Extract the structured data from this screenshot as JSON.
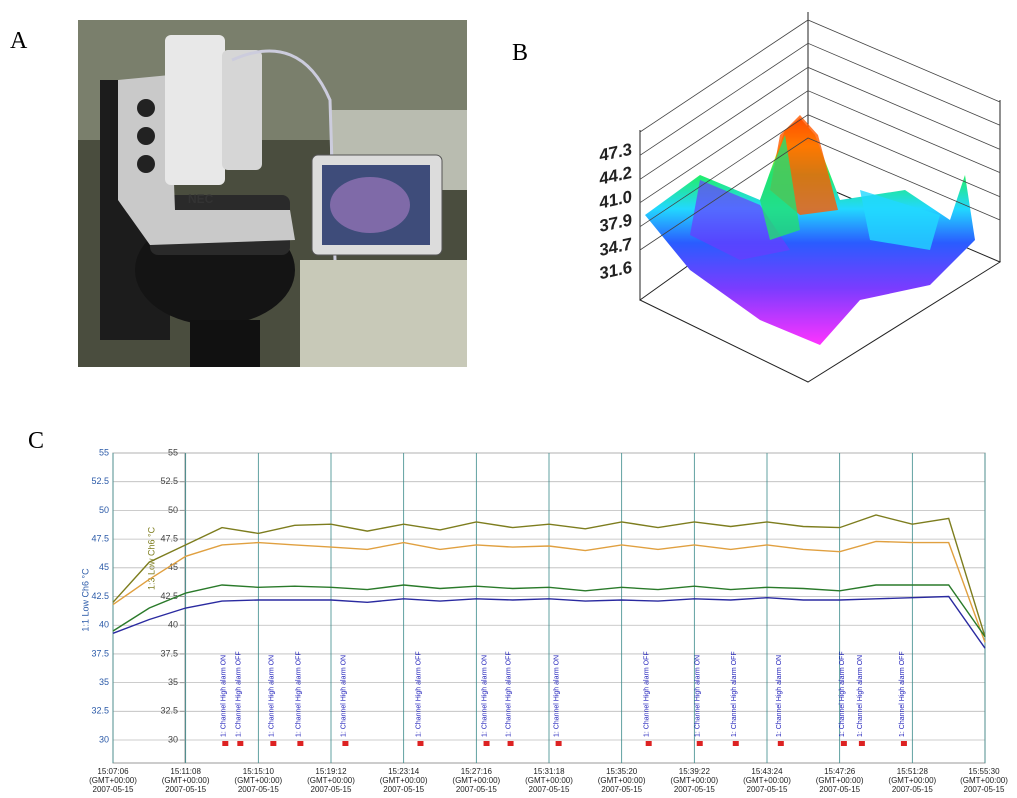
{
  "figure_labels": [
    "A",
    "B",
    "C"
  ],
  "chart_data": [
    {
      "type": "surface3d",
      "zlim": [
        31.6,
        47.3
      ],
      "zticks": [
        47.3,
        44.2,
        {
          "value": 41,
          "label": "41.0"
        },
        37.9,
        34.7,
        31.6
      ]
    },
    {
      "type": "line",
      "y_label": "1:1 Low Ch6 °C",
      "y2_label": "1:3 Low Ch6 °C",
      "x": [
        "15:07:06",
        "15:09:07",
        "15:11:08",
        "15:13:09",
        "15:15:10",
        "15:17:11",
        "15:19:12",
        "15:21:13",
        "15:23:14",
        "15:25:15",
        "15:27:16",
        "15:29:17",
        "15:31:18",
        "15:33:19",
        "15:35:20",
        "15:37:21",
        "15:39:22",
        "15:41:23",
        "15:43:24",
        "15:45:25",
        "15:47:26",
        "15:49:27",
        "15:51:28",
        "15:53:29",
        "15:55:30"
      ],
      "xlim": [
        "15:07:06",
        "15:55:30"
      ],
      "xticks": [
        {
          "value": "15:07:06",
          "label": "15:07:06 (GMT+00:00) 2007-05-15"
        },
        {
          "value": "15:11:08",
          "label": "15:11:08 (GMT+00:00) 2007-05-15"
        },
        {
          "value": "15:15:10",
          "label": "15:15:10 (GMT+00:00) 2007-05-15"
        },
        {
          "value": "15:19:12",
          "label": "15:19:12 (GMT+00:00) 2007-05-15"
        },
        {
          "value": "15:23:14",
          "label": "15:23:14 (GMT+00:00) 2007-05-15"
        },
        {
          "value": "15:27:16",
          "label": "15:27:16 (GMT+00:00) 2007-05-15"
        },
        {
          "value": "15:31:18",
          "label": "15:31:18 (GMT+00:00) 2007-05-15"
        },
        {
          "value": "15:35:20",
          "label": "15:35:20 (GMT+00:00) 2007-05-15"
        },
        {
          "value": "15:39:22",
          "label": "15:39:22 (GMT+00:00) 2007-05-15"
        },
        {
          "value": "15:43:24",
          "label": "15:43:24 (GMT+00:00) 2007-05-15"
        },
        {
          "value": "15:47:26",
          "label": "15:47:26 (GMT+00:00) 2007-05-15"
        },
        {
          "value": "15:51:28",
          "label": "15:51:28 (GMT+00:00) 2007-05-15"
        },
        {
          "value": "15:55:30",
          "label": "15:55:30 (GMT+00:00) 2007-05-15"
        }
      ],
      "ylim": [
        28,
        55
      ],
      "yticks": [
        55,
        52.5,
        50,
        47.5,
        45,
        42.5,
        40,
        37.5,
        35,
        32.5,
        30
      ],
      "y2lim": [
        28,
        55
      ],
      "y2ticks": [
        55,
        52.5,
        50,
        47.5,
        45,
        42.5,
        40,
        37.5,
        35,
        32.5,
        30
      ],
      "grid": true,
      "series": [
        {
          "color": "#7d7d1e",
          "values": [
            42.0,
            45.5,
            47.0,
            48.5,
            48.0,
            48.7,
            48.8,
            48.2,
            48.8,
            48.3,
            49.0,
            48.5,
            48.8,
            48.4,
            49.0,
            48.5,
            49.0,
            48.6,
            49.0,
            48.6,
            48.5,
            49.6,
            48.8,
            49.3,
            39.0
          ]
        },
        {
          "color": "#e0a040",
          "values": [
            41.8,
            44.0,
            46.0,
            47.0,
            47.2,
            47.0,
            46.8,
            46.6,
            47.2,
            46.6,
            47.0,
            46.8,
            46.9,
            46.5,
            47.0,
            46.6,
            47.0,
            46.6,
            47.0,
            46.6,
            46.4,
            47.3,
            47.2,
            47.2,
            38.5
          ]
        },
        {
          "color": "#2a7a2a",
          "values": [
            39.5,
            41.5,
            42.8,
            43.5,
            43.3,
            43.4,
            43.3,
            43.1,
            43.5,
            43.2,
            43.4,
            43.2,
            43.3,
            43.0,
            43.3,
            43.1,
            43.4,
            43.1,
            43.3,
            43.2,
            43.0,
            43.5,
            43.5,
            43.5,
            39.0
          ]
        },
        {
          "color": "#2a2aa0",
          "values": [
            39.3,
            40.5,
            41.5,
            42.1,
            42.2,
            42.2,
            42.2,
            42.0,
            42.3,
            42.1,
            42.3,
            42.2,
            42.3,
            42.1,
            42.2,
            42.1,
            42.3,
            42.2,
            42.4,
            42.2,
            42.2,
            42.3,
            42.4,
            42.5,
            38.0
          ]
        }
      ],
      "annotations": [
        {
          "x": "15:13:20",
          "text": "1: Channel High alarm ON"
        },
        {
          "x": "15:14:10",
          "text": "1: Channel High alarm OFF"
        },
        {
          "x": "15:16:00",
          "text": "1: Channel High alarm ON"
        },
        {
          "x": "15:17:30",
          "text": "1: Channel High alarm OFF"
        },
        {
          "x": "15:20:00",
          "text": "1: Channel High alarm ON"
        },
        {
          "x": "15:24:10",
          "text": "1: Channel High alarm OFF"
        },
        {
          "x": "15:27:50",
          "text": "1: Channel High alarm ON"
        },
        {
          "x": "15:29:10",
          "text": "1: Channel High alarm OFF"
        },
        {
          "x": "15:31:50",
          "text": "1: Channel High alarm ON"
        },
        {
          "x": "15:36:50",
          "text": "1: Channel High alarm OFF"
        },
        {
          "x": "15:39:40",
          "text": "1: Channel High alarm ON"
        },
        {
          "x": "15:41:40",
          "text": "1: Channel High alarm OFF"
        },
        {
          "x": "15:44:10",
          "text": "1: Channel High alarm ON"
        },
        {
          "x": "15:47:40",
          "text": "1: Channel High alarm OFF"
        },
        {
          "x": "15:48:40",
          "text": "1: Channel High alarm ON"
        },
        {
          "x": "15:51:00",
          "text": "1: Channel High alarm OFF"
        }
      ]
    }
  ]
}
